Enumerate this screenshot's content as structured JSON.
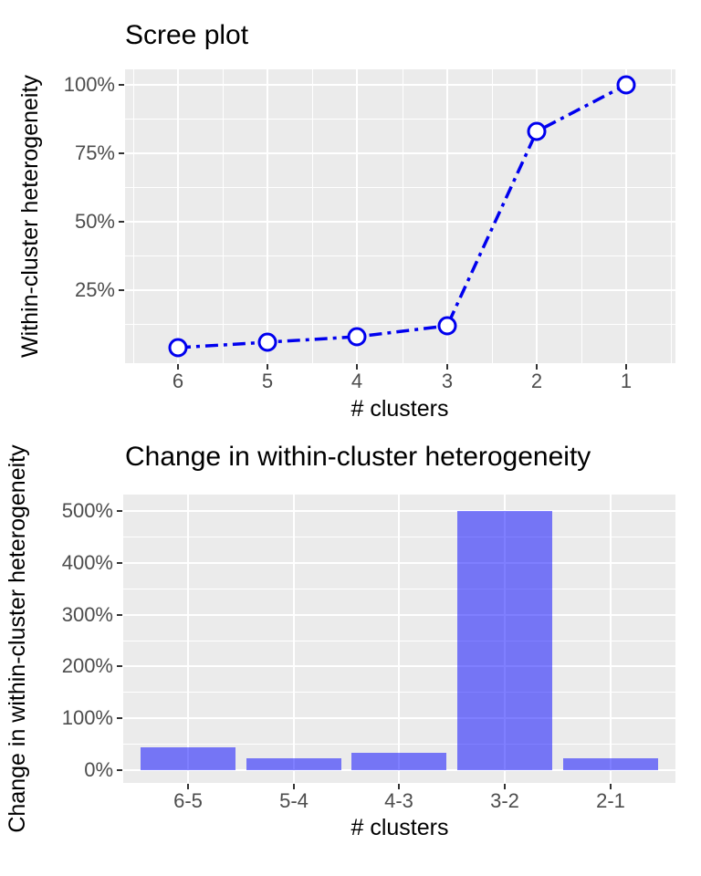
{
  "figure": {
    "background": "#FFFFFF",
    "panel_background": "#EBEBEB",
    "gridline_color": "#FFFFFF",
    "tick_mark_color": "#333333",
    "tick_label_color": "#4D4D4D",
    "title_color": "#000000"
  },
  "chart_data": [
    {
      "id": "scree",
      "type": "line",
      "title": "Scree plot",
      "xlabel": "# clusters",
      "ylabel": "Within-cluster heterogeneity",
      "x": [
        6,
        5,
        4,
        3,
        2,
        1
      ],
      "x_tick_labels": [
        "6",
        "5",
        "4",
        "3",
        "2",
        "1"
      ],
      "values": [
        4,
        6,
        8,
        12,
        83,
        100
      ],
      "y_unit": "%",
      "y_ticks": [
        25,
        50,
        75,
        100
      ],
      "y_tick_labels": [
        "25%",
        "50%",
        "75%",
        "100%"
      ],
      "ylim": [
        0,
        105
      ],
      "x_axis_reversed": true,
      "line_color": "#0000EE",
      "line_style": "dotdash",
      "marker": "open-circle-white-fill",
      "grid": "white major and minor gridlines on gray panel",
      "legend_position": "none"
    },
    {
      "id": "change",
      "type": "bar",
      "title": "Change in within-cluster heterogeneity",
      "xlabel": "# clusters",
      "ylabel": "Change in within-cluster heterogeneity",
      "categories": [
        "6-5",
        "5-4",
        "4-3",
        "3-2",
        "2-1"
      ],
      "values": [
        44,
        23,
        34,
        500,
        23
      ],
      "y_unit": "%",
      "y_ticks": [
        0,
        100,
        200,
        300,
        400,
        500
      ],
      "y_tick_labels": [
        "0%",
        "100%",
        "200%",
        "300%",
        "400%",
        "500%"
      ],
      "ylim": [
        0,
        530
      ],
      "bar_color": "rgba(0,0,255,0.5)",
      "grid": "white major and minor gridlines on gray panel",
      "legend_position": "none"
    }
  ]
}
